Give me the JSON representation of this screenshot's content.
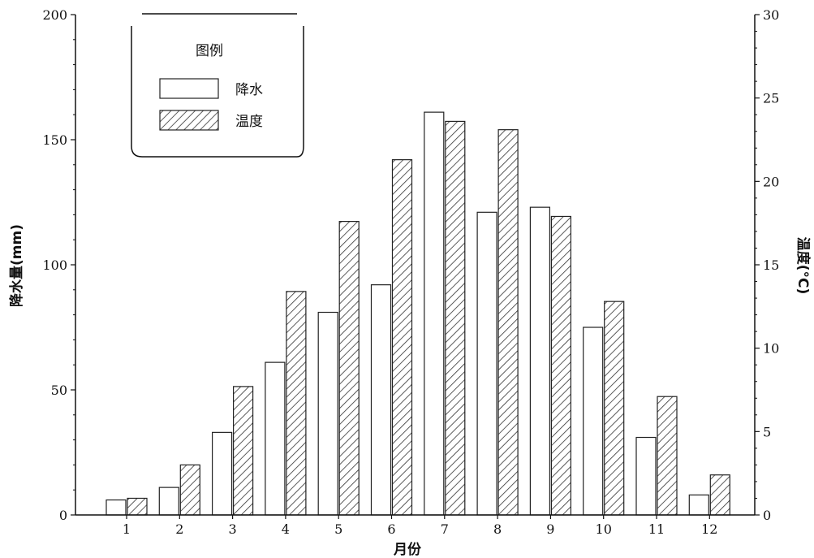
{
  "chart_data": {
    "type": "bar",
    "categories": [
      "1",
      "2",
      "3",
      "4",
      "5",
      "6",
      "7",
      "8",
      "9",
      "10",
      "11",
      "12"
    ],
    "xlabel": "月份",
    "ylabel_left": "降水量(mm)",
    "ylabel_right": "温度(°C)",
    "ylim_left": [
      0,
      200
    ],
    "ylim_right": [
      0,
      30
    ],
    "yticks_left": [
      "0",
      "50",
      "100",
      "150",
      "200"
    ],
    "yticks_right": [
      "0",
      "5",
      "10",
      "15",
      "20",
      "25",
      "30"
    ],
    "legend_title": "图例",
    "legend_position": "top-left",
    "series": [
      {
        "name": "降水",
        "axis": "left",
        "pattern": "plain",
        "values": [
          6,
          11,
          33,
          61,
          81,
          92,
          161,
          121,
          123,
          75,
          31,
          8
        ]
      },
      {
        "name": "温度",
        "axis": "right",
        "pattern": "hatched",
        "values": [
          1.0,
          3.0,
          7.7,
          13.4,
          17.6,
          21.3,
          23.6,
          23.1,
          17.9,
          12.8,
          7.1,
          2.4
        ]
      }
    ],
    "grid": false
  }
}
